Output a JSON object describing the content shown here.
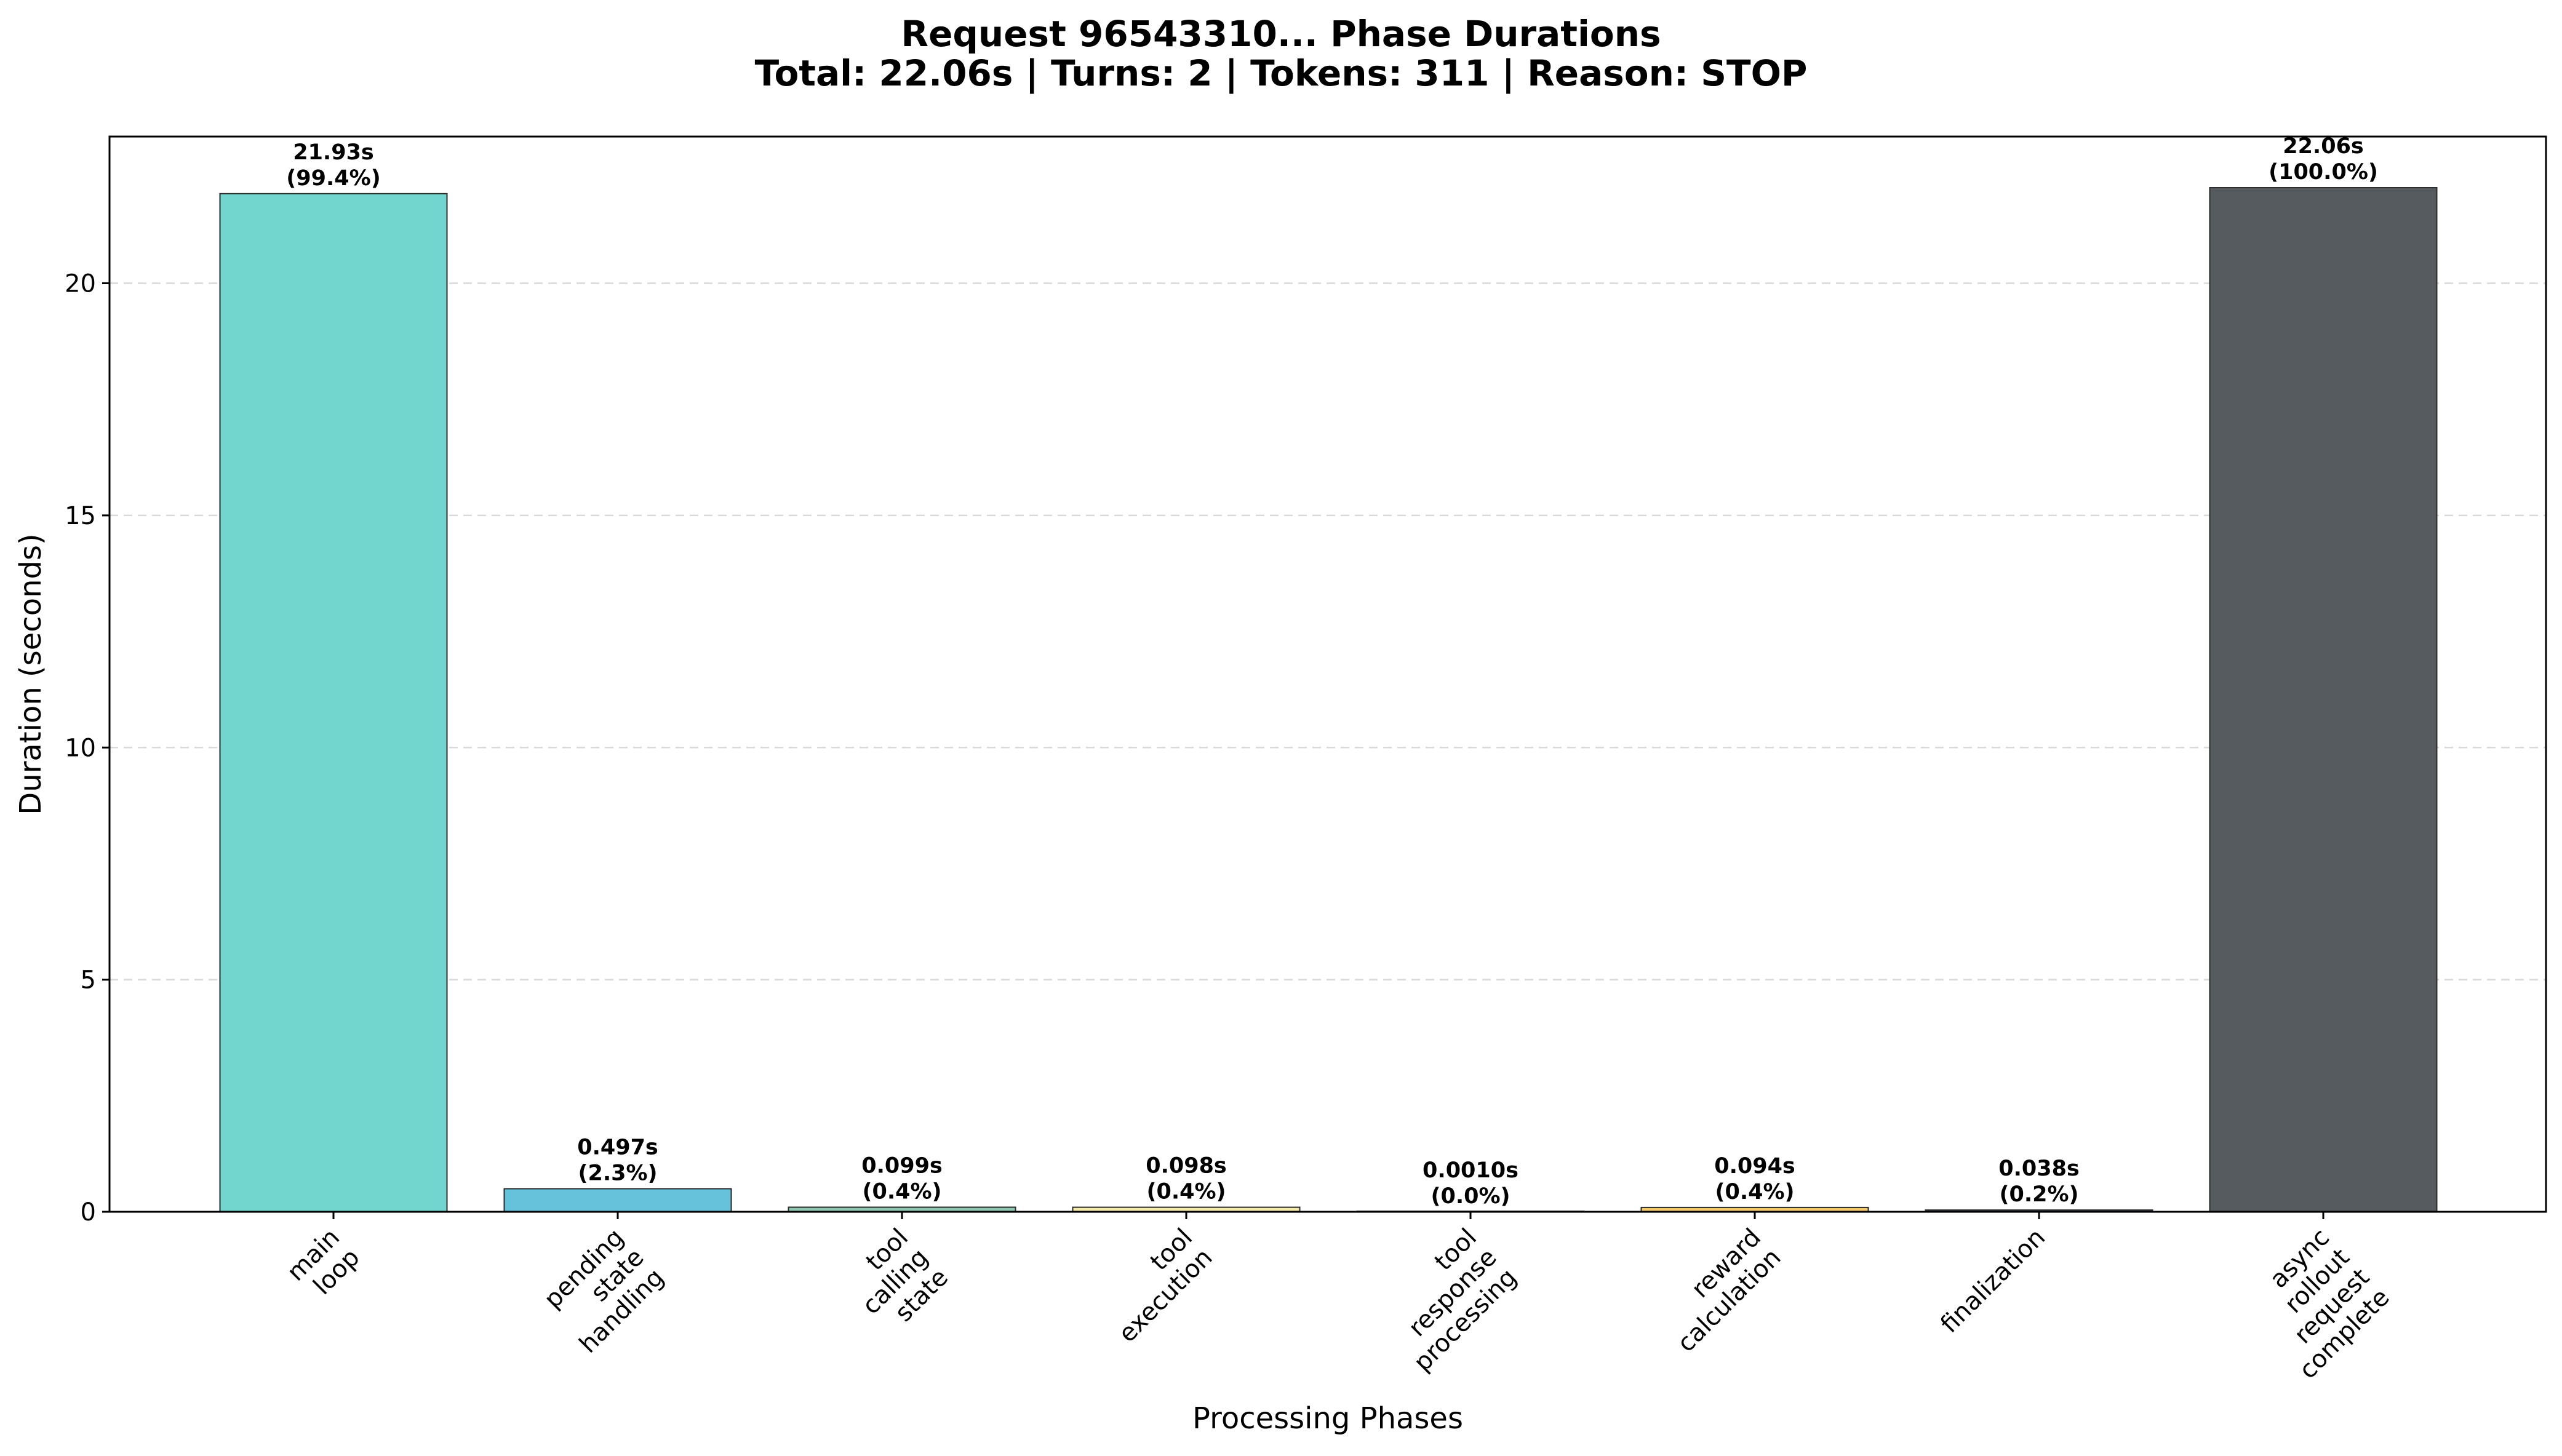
{
  "chart_data": {
    "type": "bar",
    "title": "Request 96543310... Phase Durations",
    "subtitle": "Total: 22.06s | Turns: 2 | Tokens: 311 | Reason: STOP",
    "xlabel": "Processing Phases",
    "ylabel": "Duration (seconds)",
    "ylim": [
      0,
      23.16
    ],
    "yticks": [
      0,
      5,
      10,
      15,
      20
    ],
    "grid": "horizontal dashed",
    "legend": "none",
    "categories": [
      [
        "main",
        "loop"
      ],
      [
        "pending",
        "state",
        "handling"
      ],
      [
        "tool",
        "calling",
        "state"
      ],
      [
        "tool",
        "execution"
      ],
      [
        "tool",
        "response",
        "processing"
      ],
      [
        "reward",
        "calculation"
      ],
      [
        "finalization"
      ],
      [
        "async",
        "rollout",
        "request",
        "complete"
      ]
    ],
    "values": [
      21.93,
      0.497,
      0.099,
      0.098,
      0.001,
      0.094,
      0.038,
      22.06
    ],
    "value_labels": [
      "21.93s",
      "0.497s",
      "0.099s",
      "0.098s",
      "0.0010s",
      "0.094s",
      "0.038s",
      "22.06s"
    ],
    "percent_labels": [
      "(99.4%)",
      "(2.3%)",
      "(0.4%)",
      "(0.4%)",
      "(0.0%)",
      "(0.4%)",
      "(0.2%)",
      "(100.0%)"
    ],
    "colors": [
      "#72d6cf",
      "#66c2db",
      "#8fc8b2",
      "#f4e9a7",
      "#c9a7d6",
      "#f3c96a",
      "#34496b",
      "#555b5e"
    ]
  }
}
